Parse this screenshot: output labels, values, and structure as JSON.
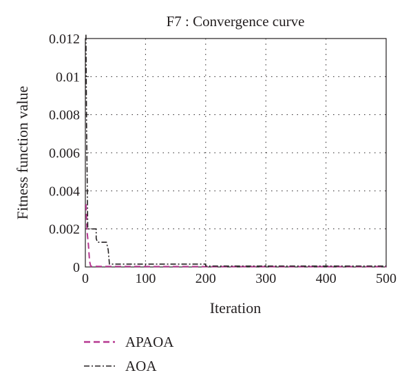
{
  "chart_data": {
    "type": "line",
    "title": "F7 : Convergence curve",
    "xlabel": "Iteration",
    "ylabel": "Fitness function value",
    "xlim": [
      0,
      500
    ],
    "ylim": [
      0,
      0.012
    ],
    "x_ticks": [
      "0",
      "100",
      "200",
      "300",
      "400",
      "500"
    ],
    "y_ticks": [
      "0",
      "0.002",
      "0.004",
      "0.006",
      "0.008",
      "0.01",
      "0.012"
    ],
    "grid": true,
    "legend_position": "below",
    "series": [
      {
        "name": "APAOA",
        "color": "#b5358f",
        "style": "dashed",
        "x": [
          1,
          3,
          5,
          7,
          9,
          200,
          500
        ],
        "y": [
          0.0033,
          0.0018,
          0.0012,
          0.0003,
          3e-05,
          2e-05,
          2e-05
        ]
      },
      {
        "name": "AOA",
        "color": "#231f20",
        "style": "dashdot",
        "x": [
          1,
          2,
          4,
          18,
          18,
          20,
          35,
          38,
          40,
          200,
          200,
          500
        ],
        "y": [
          0.0125,
          0.0075,
          0.002,
          0.002,
          0.0015,
          0.0013,
          0.0013,
          0.0009,
          0.00015,
          0.00015,
          5e-05,
          5e-05
        ]
      }
    ]
  }
}
